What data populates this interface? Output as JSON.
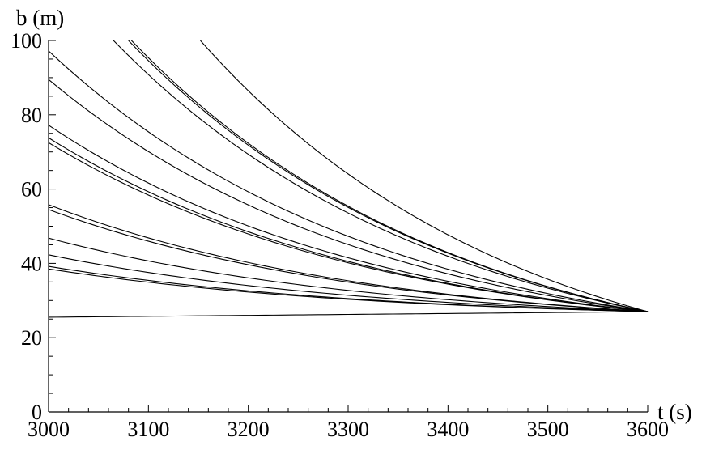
{
  "chart_data": {
    "type": "line",
    "title": "",
    "xlabel": "t (s)",
    "ylabel": "b (m)",
    "xlim": [
      3000,
      3600
    ],
    "ylim": [
      0,
      100
    ],
    "xticks": [
      3000,
      3100,
      3200,
      3300,
      3400,
      3500,
      3600
    ],
    "yticks": [
      0,
      20,
      40,
      60,
      80,
      100
    ],
    "x_tick_labels": [
      "3000",
      "3100",
      "3200",
      "3300",
      "3400",
      "3500",
      "3600"
    ],
    "y_tick_labels": [
      "0",
      "20",
      "40",
      "60",
      "80",
      "100"
    ],
    "grid": false,
    "legend": "none",
    "converge_point": [
      3600,
      27
    ],
    "series": [
      {
        "x": [
          3000,
          3600
        ],
        "y": [
          25.5,
          27
        ]
      },
      {
        "x": [
          3000,
          3600
        ],
        "y": [
          38.5,
          27
        ]
      },
      {
        "x": [
          3000,
          3600
        ],
        "y": [
          39.2,
          27
        ]
      },
      {
        "x": [
          3000,
          3600
        ],
        "y": [
          42.3,
          27
        ]
      },
      {
        "x": [
          3000,
          3600
        ],
        "y": [
          46.8,
          27
        ]
      },
      {
        "x": [
          3000,
          3600
        ],
        "y": [
          54.5,
          27
        ]
      },
      {
        "x": [
          3000,
          3600
        ],
        "y": [
          55.8,
          27
        ]
      },
      {
        "x": [
          3000,
          3600
        ],
        "y": [
          72.5,
          27
        ]
      },
      {
        "x": [
          3000,
          3600
        ],
        "y": [
          73.8,
          27
        ]
      },
      {
        "x": [
          3000,
          3600
        ],
        "y": [
          77.2,
          27
        ]
      },
      {
        "x": [
          3000,
          3600
        ],
        "y": [
          89.5,
          27
        ]
      },
      {
        "x": [
          3000,
          3600
        ],
        "y": [
          97.2,
          27
        ]
      },
      {
        "x": [
          3065,
          3600
        ],
        "y": [
          100,
          27
        ]
      },
      {
        "x": [
          3080,
          3600
        ],
        "y": [
          100,
          27
        ]
      },
      {
        "x": [
          3083,
          3600
        ],
        "y": [
          100,
          27
        ]
      },
      {
        "x": [
          3152,
          3600
        ],
        "y": [
          100,
          27
        ]
      }
    ]
  }
}
